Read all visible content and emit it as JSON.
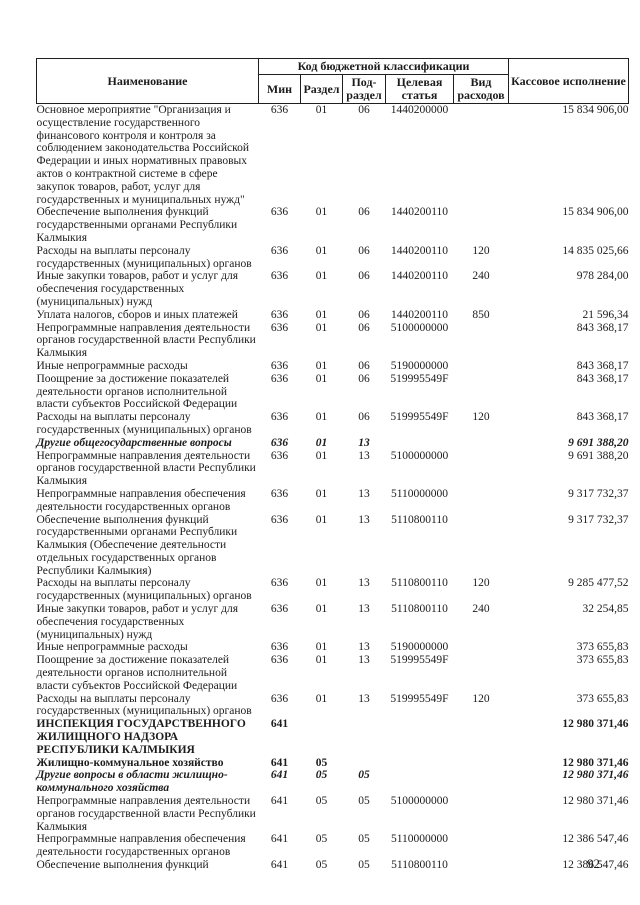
{
  "page_number": "92",
  "table": {
    "header": {
      "name": "Наименование",
      "code_group": "Код бюджетной классификации",
      "min": "Мин",
      "razdel": "Раздел",
      "podrazdel": "Под-раздел",
      "target": "Целевая статья",
      "vid": "Вид расходов",
      "cash": "Кассовое исполнение"
    },
    "rows": [
      {
        "name": "Основное мероприятие \"Организация и осуществление государственного финансового контроля и контроля за соблюдением законодательства Российской Федерации и иных нормативных правовых актов о контрактной системе в сфере закупок товаров, работ, услуг для государственных и муниципальных нужд\"",
        "min": "636",
        "razdel": "01",
        "podrazdel": "06",
        "target": "1440200000",
        "vid": "",
        "cash": "15 834 906,00",
        "style": ""
      },
      {
        "name": "Обеспечение выполнения функций государственными органами Республики Калмыкия",
        "min": "636",
        "razdel": "01",
        "podrazdel": "06",
        "target": "1440200110",
        "vid": "",
        "cash": "15 834 906,00",
        "style": ""
      },
      {
        "name": "Расходы на выплаты персоналу государственных (муниципальных) органов",
        "min": "636",
        "razdel": "01",
        "podrazdel": "06",
        "target": "1440200110",
        "vid": "120",
        "cash": "14 835 025,66",
        "style": ""
      },
      {
        "name": "Иные закупки товаров, работ и услуг для обеспечения государственных (муниципальных) нужд",
        "min": "636",
        "razdel": "01",
        "podrazdel": "06",
        "target": "1440200110",
        "vid": "240",
        "cash": "978 284,00",
        "style": ""
      },
      {
        "name": "Уплата налогов, сборов и иных платежей",
        "min": "636",
        "razdel": "01",
        "podrazdel": "06",
        "target": "1440200110",
        "vid": "850",
        "cash": "21 596,34",
        "style": ""
      },
      {
        "name": "Непрограммные направления деятельности органов государственной власти Республики Калмыкия",
        "min": "636",
        "razdel": "01",
        "podrazdel": "06",
        "target": "5100000000",
        "vid": "",
        "cash": "843 368,17",
        "style": ""
      },
      {
        "name": "Иные непрограммные расходы",
        "min": "636",
        "razdel": "01",
        "podrazdel": "06",
        "target": "5190000000",
        "vid": "",
        "cash": "843 368,17",
        "style": ""
      },
      {
        "name": "Поощрение за достижение показателей деятельности органов исполнительной власти субъектов Российской Федерации",
        "min": "636",
        "razdel": "01",
        "podrazdel": "06",
        "target": "519995549F",
        "vid": "",
        "cash": "843 368,17",
        "style": ""
      },
      {
        "name": "Расходы на выплаты персоналу государственных (муниципальных) органов",
        "min": "636",
        "razdel": "01",
        "podrazdel": "06",
        "target": "519995549F",
        "vid": "120",
        "cash": "843 368,17",
        "style": ""
      },
      {
        "name": "Другие общегосударственные вопросы",
        "min": "636",
        "razdel": "01",
        "podrazdel": "13",
        "target": "",
        "vid": "",
        "cash": "9 691 388,20",
        "style": "bold-italic"
      },
      {
        "name": "Непрограммные направления деятельности органов государственной власти Республики Калмыкия",
        "min": "636",
        "razdel": "01",
        "podrazdel": "13",
        "target": "5100000000",
        "vid": "",
        "cash": "9 691 388,20",
        "style": ""
      },
      {
        "name": "Непрограммные направления обеспечения деятельности государственных органов",
        "min": "636",
        "razdel": "01",
        "podrazdel": "13",
        "target": "5110000000",
        "vid": "",
        "cash": "9 317 732,37",
        "style": ""
      },
      {
        "name": "Обеспечение выполнения функций государственными органами Республики Калмыкия (Обеспечение деятельности отдельных государственных органов Республики Калмыкия)",
        "min": "636",
        "razdel": "01",
        "podrazdel": "13",
        "target": "5110800110",
        "vid": "",
        "cash": "9 317 732,37",
        "style": ""
      },
      {
        "name": "Расходы на выплаты персоналу государственных (муниципальных) органов",
        "min": "636",
        "razdel": "01",
        "podrazdel": "13",
        "target": "5110800110",
        "vid": "120",
        "cash": "9 285 477,52",
        "style": ""
      },
      {
        "name": "Иные закупки товаров, работ и услуг для обеспечения государственных (муниципальных) нужд",
        "min": "636",
        "razdel": "01",
        "podrazdel": "13",
        "target": "5110800110",
        "vid": "240",
        "cash": "32 254,85",
        "style": ""
      },
      {
        "name": "Иные непрограммные расходы",
        "min": "636",
        "razdel": "01",
        "podrazdel": "13",
        "target": "5190000000",
        "vid": "",
        "cash": "373 655,83",
        "style": ""
      },
      {
        "name": "Поощрение за достижение показателей деятельности органов исполнительной власти субъектов Российской Федерации",
        "min": "636",
        "razdel": "01",
        "podrazdel": "13",
        "target": "519995549F",
        "vid": "",
        "cash": "373 655,83",
        "style": ""
      },
      {
        "name": "Расходы на выплаты персоналу государственных (муниципальных) органов",
        "min": "636",
        "razdel": "01",
        "podrazdel": "13",
        "target": "519995549F",
        "vid": "120",
        "cash": "373 655,83",
        "style": ""
      },
      {
        "name": "ИНСПЕКЦИЯ ГОСУДАРСТВЕННОГО ЖИЛИЩНОГО НАДЗОРА РЕСПУБЛИКИ КАЛМЫКИЯ",
        "min": "641",
        "razdel": "",
        "podrazdel": "",
        "target": "",
        "vid": "",
        "cash": "12 980 371,46",
        "style": "bold"
      },
      {
        "name": "Жилищно-коммунальное хозяйство",
        "min": "641",
        "razdel": "05",
        "podrazdel": "",
        "target": "",
        "vid": "",
        "cash": "12 980 371,46",
        "style": "bold"
      },
      {
        "name": "Другие вопросы в области жилищно-коммунального хозяйства",
        "min": "641",
        "razdel": "05",
        "podrazdel": "05",
        "target": "",
        "vid": "",
        "cash": "12 980 371,46",
        "style": "bold-italic"
      },
      {
        "name": "Непрограммные направления деятельности органов государственной власти Республики Калмыкия",
        "min": "641",
        "razdel": "05",
        "podrazdel": "05",
        "target": "5100000000",
        "vid": "",
        "cash": "12 980 371,46",
        "style": ""
      },
      {
        "name": "Непрограммные направления обеспечения деятельности государственных органов",
        "min": "641",
        "razdel": "05",
        "podrazdel": "05",
        "target": "5110000000",
        "vid": "",
        "cash": "12 386 547,46",
        "style": ""
      },
      {
        "name": "Обеспечение выполнения функций",
        "min": "641",
        "razdel": "05",
        "podrazdel": "05",
        "target": "5110800110",
        "vid": "",
        "cash": "12 386 547,46",
        "style": ""
      }
    ]
  }
}
